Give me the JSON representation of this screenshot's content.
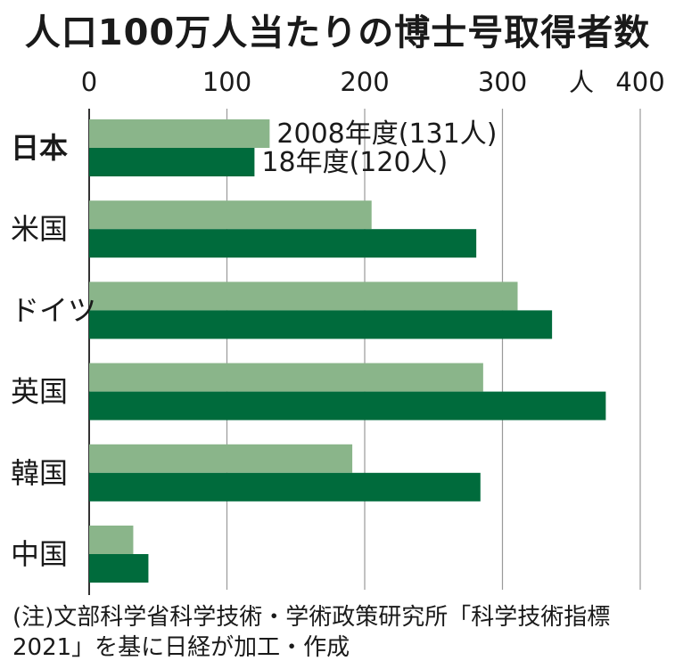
{
  "chart_data": {
    "type": "bar",
    "orientation": "horizontal",
    "title": "人口100万人当たりの博士号取得者数",
    "unit": "人",
    "xlim": [
      0,
      400
    ],
    "x_ticks": [
      0,
      100,
      200,
      300,
      400
    ],
    "grid": true,
    "categories": [
      "日本",
      "米国",
      "ドイツ",
      "英国",
      "韓国",
      "中国"
    ],
    "series": [
      {
        "name": "2008年度",
        "color": "#8ab58a",
        "values": [
          131,
          205,
          311,
          286,
          191,
          32
        ]
      },
      {
        "name": "18年度",
        "color": "#006b3c",
        "values": [
          120,
          281,
          336,
          375,
          284,
          43
        ]
      }
    ],
    "annotations": [
      {
        "text": "2008年度(131人)",
        "category": "日本",
        "series": "2008年度"
      },
      {
        "text": "18年度(120人)",
        "category": "日本",
        "series": "18年度"
      }
    ],
    "source": "(注)文部科学省科学技術・学術政策研究所「科学技術指標2021」を基に日経が加工・作成"
  }
}
